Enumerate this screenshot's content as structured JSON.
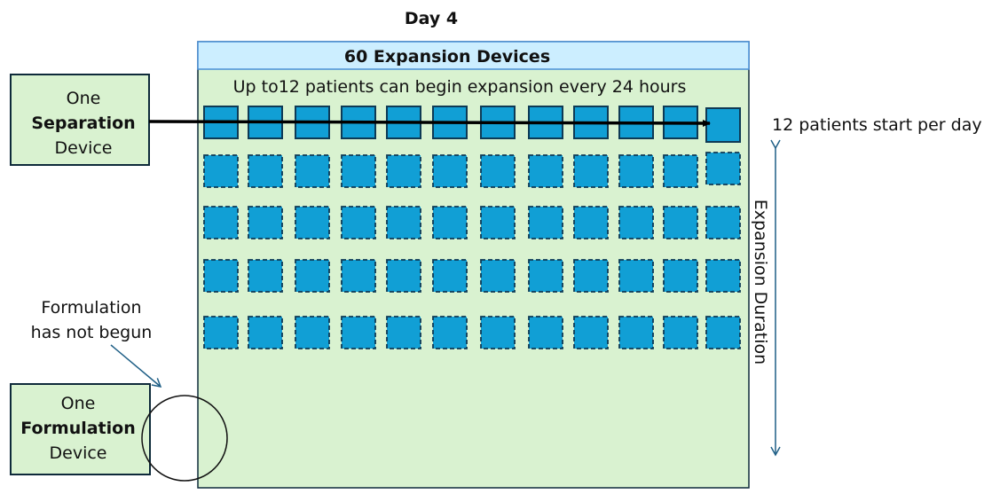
{
  "title": "Day 4",
  "expansion": {
    "header": "60 Expansion Devices",
    "subtitle": "Up to12 patients can begin expansion every 24 hours",
    "rows": 5,
    "columns": 12,
    "active_rows": 1
  },
  "separation_device": {
    "line1": "One",
    "line2": "Separation",
    "line3": "Device"
  },
  "formulation_device": {
    "line1": "One",
    "line2": "Formulation",
    "line3": "Device"
  },
  "formulation_note": {
    "line1": "Formulation",
    "line2": "has not begun"
  },
  "start_label": "12 patients start per day",
  "duration_label": "Expansion Duration",
  "colors": {
    "panel_fill": "#d9f2d0",
    "header_fill": "#cceeff",
    "header_border": "#4a90d9",
    "device_fill": "#119fd5",
    "device_border": "#0e3a55",
    "arrow_blue": "#1f5f86"
  }
}
